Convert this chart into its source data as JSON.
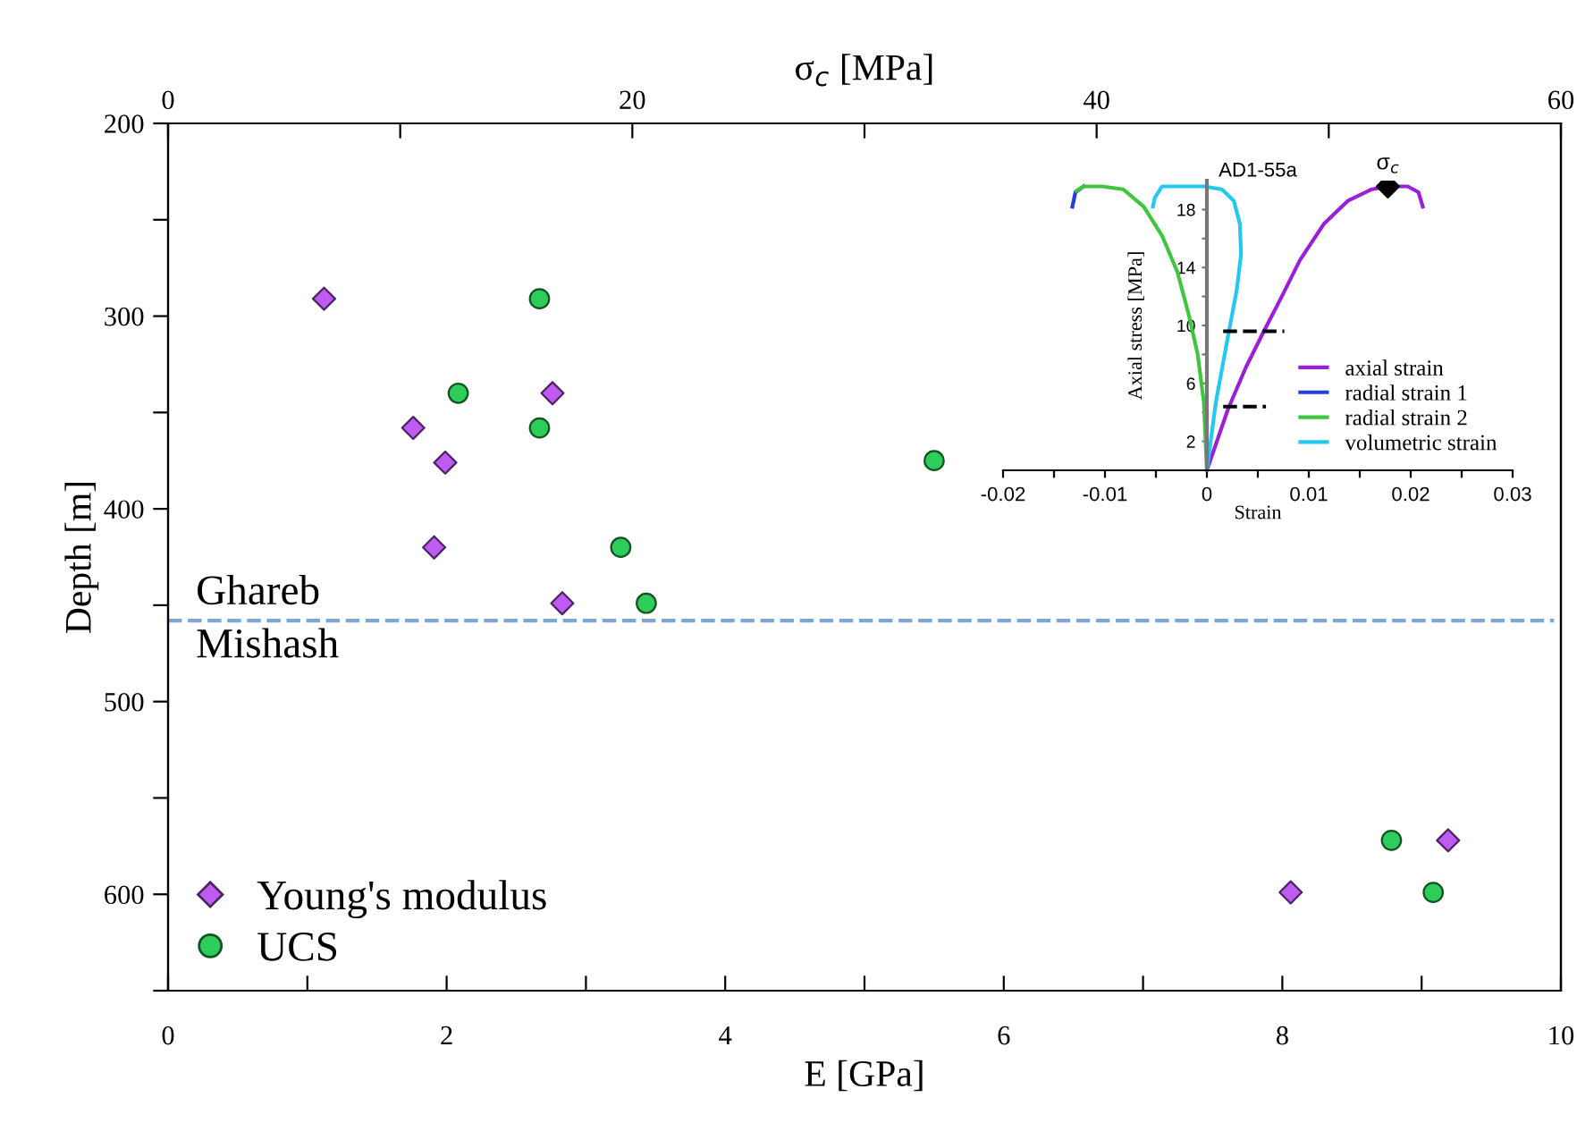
{
  "chart_data": [
    {
      "type": "scatter",
      "xlabel": "E [GPa]",
      "ylabel": "Depth [m]",
      "x2label": "σ$_{c}$ [MPa]",
      "xlim": [
        0,
        10
      ],
      "xticks": [
        0,
        {
          "value": 1,
          "label": null
        },
        2,
        {
          "value": 3,
          "label": null
        },
        4,
        {
          "value": 5,
          "label": null
        },
        6,
        {
          "value": 7,
          "label": null
        },
        8,
        {
          "value": 9,
          "label": null
        },
        10
      ],
      "x2lim": [
        0,
        60
      ],
      "x2ticks": [
        0,
        {
          "value": 10,
          "label": null
        },
        20,
        {
          "value": 30,
          "label": null
        },
        40,
        {
          "value": 50,
          "label": null
        },
        60
      ],
      "ylim": [
        650,
        200
      ],
      "yticks": [
        200,
        {
          "value": 250,
          "label": null
        },
        300,
        {
          "value": 350,
          "label": null
        },
        400,
        {
          "value": 450,
          "label": null
        },
        500,
        {
          "value": 550,
          "label": null
        },
        600,
        {
          "value": 650,
          "label": null
        }
      ],
      "series": [
        {
          "name": "Young's modulus",
          "color": "#bf5af2",
          "marker": "diamond",
          "x": [
            1.12,
            1.76,
            1.99,
            1.91,
            2.76,
            2.83,
            8.06,
            9.19
          ],
          "values": [
            291,
            358,
            376,
            420,
            340,
            449,
            599,
            572
          ]
        },
        {
          "name": "UCS",
          "color": "#2ecc5a",
          "marker": "circle",
          "axis": "x2",
          "x": [
            16.0,
            12.5,
            16.0,
            19.5,
            20.6,
            33.0,
            52.7,
            54.5
          ],
          "values": [
            291,
            340,
            358,
            420,
            449,
            375,
            572,
            599
          ]
        }
      ],
      "ref_lines": [
        {
          "axis": "y",
          "value": 458,
          "color": "#7fa7d6",
          "line_style": "dashed"
        }
      ],
      "annotations": [
        "Ghareb",
        "Mishash"
      ],
      "legend": "bottom left",
      "grid": false
    },
    {
      "type": "line",
      "title": "AD1-55a",
      "xlabel": "Strain",
      "ylabel": "Axial stress [MPa]",
      "xlim": [
        -0.02,
        0.03
      ],
      "xticks": [
        -0.02,
        {
          "value": -0.015,
          "label": null
        },
        -0.01,
        {
          "value": -0.005,
          "label": null
        },
        0,
        {
          "value": 0.005,
          "label": null
        },
        0.01,
        {
          "value": 0.015,
          "label": null
        },
        0.02,
        {
          "value": 0.025,
          "label": null
        },
        0.03
      ],
      "ylim": [
        0,
        20
      ],
      "yticks": [
        2,
        {
          "value": 4,
          "label": null
        },
        6,
        {
          "value": 8,
          "label": null
        },
        10,
        {
          "value": 12,
          "label": null
        },
        14,
        {
          "value": 16,
          "label": null
        },
        18
      ],
      "series": [
        {
          "name": "axial strain",
          "color": "#9b1fd6",
          "x": [
            0,
            0.00206,
            0.00382,
            0.00559,
            0.00735,
            0.00912,
            0.01147,
            0.01382,
            0.01618,
            0.01776,
            0.01971,
            0.02076,
            0.02118
          ],
          "values": [
            0,
            4.2,
            7.1,
            9.6,
            12.0,
            14.5,
            17.0,
            18.6,
            19.4,
            19.6,
            19.6,
            19.2,
            18.2
          ]
        },
        {
          "name": "radial strain 1",
          "color": "#1f3fe0",
          "x": [
            -0.0121,
            -0.0129,
            -0.0132
          ],
          "values": [
            19.6,
            19.2,
            18.2
          ]
        },
        {
          "name": "radial strain 2",
          "color": "#3fc63f",
          "x": [
            0,
            -0.0003,
            -0.0009,
            -0.0018,
            -0.0029,
            -0.0044,
            -0.0062,
            -0.0082,
            -0.0103,
            -0.0121,
            -0.0128
          ],
          "values": [
            0,
            4.7,
            8.0,
            10.8,
            13.7,
            16.2,
            18.2,
            19.4,
            19.6,
            19.6,
            19.3
          ]
        },
        {
          "name": "volumetric strain",
          "color": "#22c8f0",
          "x": [
            0,
            0.00088,
            0.00206,
            0.00294,
            0.00335,
            0.00324,
            0.00265,
            0.00147,
            -0.00029,
            -0.00265,
            -0.00441,
            -0.00512,
            -0.00529
          ],
          "values": [
            0,
            4.7,
            9.2,
            12.5,
            14.9,
            17.0,
            18.6,
            19.4,
            19.6,
            19.6,
            19.6,
            18.8,
            18.2
          ]
        },
        {
          "color": "#000000",
          "line_style": "dashed",
          "x": [
            0.0016,
            0.0076
          ],
          "values": [
            9.6,
            9.6
          ]
        },
        {
          "color": "#000000",
          "line_style": "dashed",
          "x": [
            0.0016,
            0.0058
          ],
          "values": [
            4.4,
            4.4
          ]
        },
        {
          "type": "scatter",
          "color": "#000000",
          "marker": "diamond",
          "x": [
            0.01776
          ],
          "values": [
            19.6
          ]
        }
      ],
      "annotations": [
        {
          "text": "σ$_{c}$",
          "x": 0.01776,
          "y": 19.6
        }
      ],
      "legend": "bottom right",
      "grid": false
    }
  ]
}
